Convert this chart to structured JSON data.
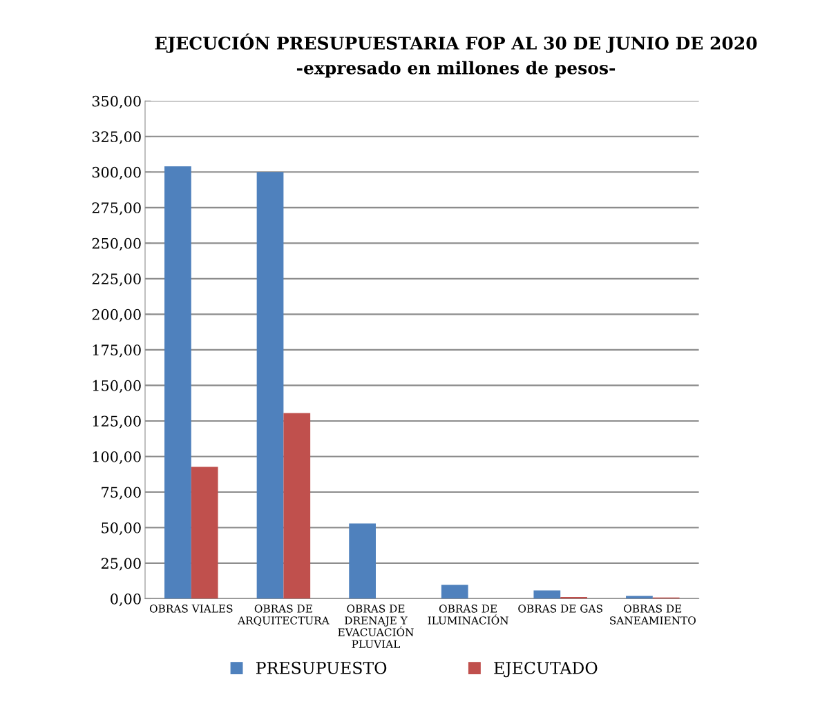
{
  "chart_data": {
    "type": "bar",
    "title": "EJECUCIÓN PRESUPUESTARIA FOP AL 30 DE JUNIO DE 2020",
    "subtitle": "-expresado en millones de pesos-",
    "categories": [
      "OBRAS VIALES",
      "OBRAS DE\nARQUITECTURA",
      "OBRAS DE\nDRENAJE Y\nEVACUACIÓN\nPLUVIAL",
      "OBRAS DE\nILUMINACIÓN",
      "OBRAS DE GAS",
      "OBRAS DE\nSANEAMIENTO"
    ],
    "series": [
      {
        "name": "PRESUPUESTO",
        "color": "#4f81bd",
        "values": [
          304,
          300,
          52.9,
          9.7,
          5.8,
          2.0
        ]
      },
      {
        "name": "EJECUTADO",
        "color": "#c0504d",
        "values": [
          92.7,
          130.6,
          0,
          0,
          1.2,
          0.8
        ]
      }
    ],
    "ylim": [
      0,
      350
    ],
    "yticks": [
      {
        "value": 0,
        "label": "0,00"
      },
      {
        "value": 25,
        "label": "25,00"
      },
      {
        "value": 50,
        "label": "50,00"
      },
      {
        "value": 75,
        "label": "75,00"
      },
      {
        "value": 100,
        "label": "100,00"
      },
      {
        "value": 125,
        "label": "125,00"
      },
      {
        "value": 150,
        "label": "150,00"
      },
      {
        "value": 175,
        "label": "175,00"
      },
      {
        "value": 200,
        "label": "200,00"
      },
      {
        "value": 225,
        "label": "225,00"
      },
      {
        "value": 250,
        "label": "250,00"
      },
      {
        "value": 275,
        "label": "275,00"
      },
      {
        "value": 300,
        "label": "300,00"
      },
      {
        "value": 325,
        "label": "325,00"
      },
      {
        "value": 350,
        "label": "350,00"
      }
    ],
    "grid": "y",
    "legend": "bottom"
  }
}
